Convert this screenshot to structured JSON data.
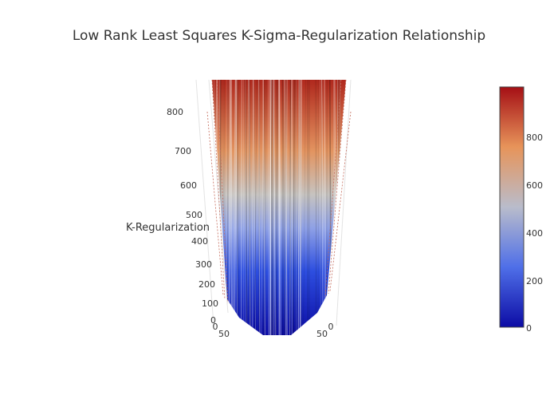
{
  "chart_data": {
    "type": "surface",
    "title": "Low Rank Least Squares K-Sigma-Regularization Relationship",
    "z_axis": {
      "title": "K-Regularization",
      "ticks": [
        "0",
        "100",
        "200",
        "300",
        "400",
        "500",
        "600",
        "700",
        "800"
      ],
      "range": [
        0,
        880
      ]
    },
    "x_axis": {
      "ticks": [
        "0",
        "50"
      ]
    },
    "y_axis": {
      "ticks": [
        "0",
        "50"
      ]
    },
    "colorbar": {
      "ticks": [
        "0",
        "200",
        "400",
        "600",
        "800"
      ],
      "range": [
        0,
        1000
      ],
      "colorscale": [
        "#0c0ca5",
        "#4f6fe8",
        "#b9bccb",
        "#e7945a",
        "#a50f15"
      ]
    },
    "surface_shape": "V-shaped surface rising from about 0 at the bottom to above 880 at the top, strongly striated vertically"
  }
}
